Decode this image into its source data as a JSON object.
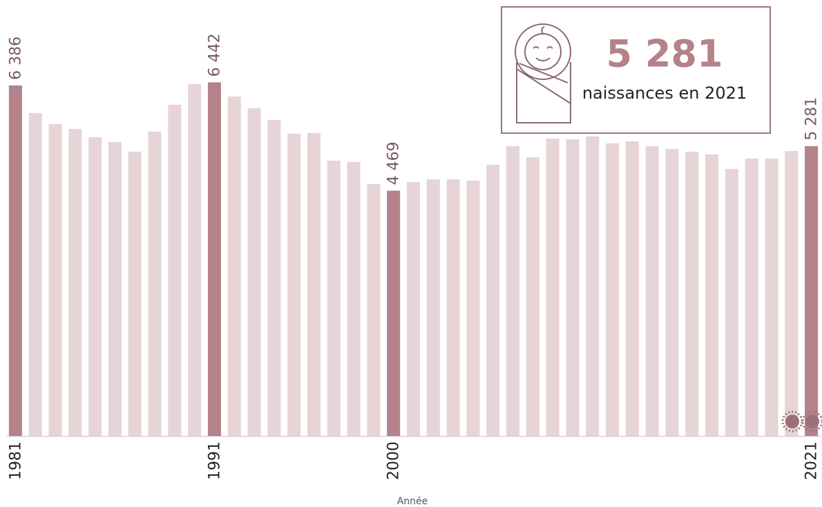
{
  "chart_data": {
    "type": "bar",
    "categories": [
      "1981",
      null,
      null,
      null,
      null,
      null,
      null,
      null,
      null,
      null,
      "1991",
      null,
      null,
      null,
      null,
      null,
      null,
      null,
      null,
      "2000",
      null,
      null,
      null,
      null,
      null,
      null,
      null,
      null,
      null,
      null,
      null,
      null,
      null,
      null,
      null,
      null,
      null,
      null,
      null,
      null,
      "2021"
    ],
    "values": [
      6386,
      5883,
      5682,
      5594,
      5443,
      5355,
      5179,
      5544,
      6034,
      6411,
      6442,
      6185,
      5971,
      5757,
      5506,
      5519,
      5016,
      4991,
      4588,
      4469,
      4626,
      4676,
      4676,
      4651,
      4940,
      5280,
      5079,
      5418,
      5405,
      5456,
      5330,
      5368,
      5280,
      5229,
      5179,
      5129,
      4865,
      5053,
      5053,
      5192,
      5281
    ],
    "value_labels": [
      "6 386",
      null,
      null,
      null,
      null,
      null,
      null,
      null,
      null,
      null,
      "6 442",
      null,
      null,
      null,
      null,
      null,
      null,
      null,
      null,
      "4 469",
      null,
      null,
      null,
      null,
      null,
      null,
      null,
      null,
      null,
      null,
      null,
      null,
      null,
      null,
      null,
      null,
      null,
      null,
      null,
      null,
      "5 281"
    ],
    "color": "#e6d4d6",
    "highlight_color": "#b5828a",
    "ylim": [
      0,
      7000
    ],
    "x_label": "Année",
    "callout": {
      "value": "5 281",
      "text": "naissances en 2021"
    }
  }
}
